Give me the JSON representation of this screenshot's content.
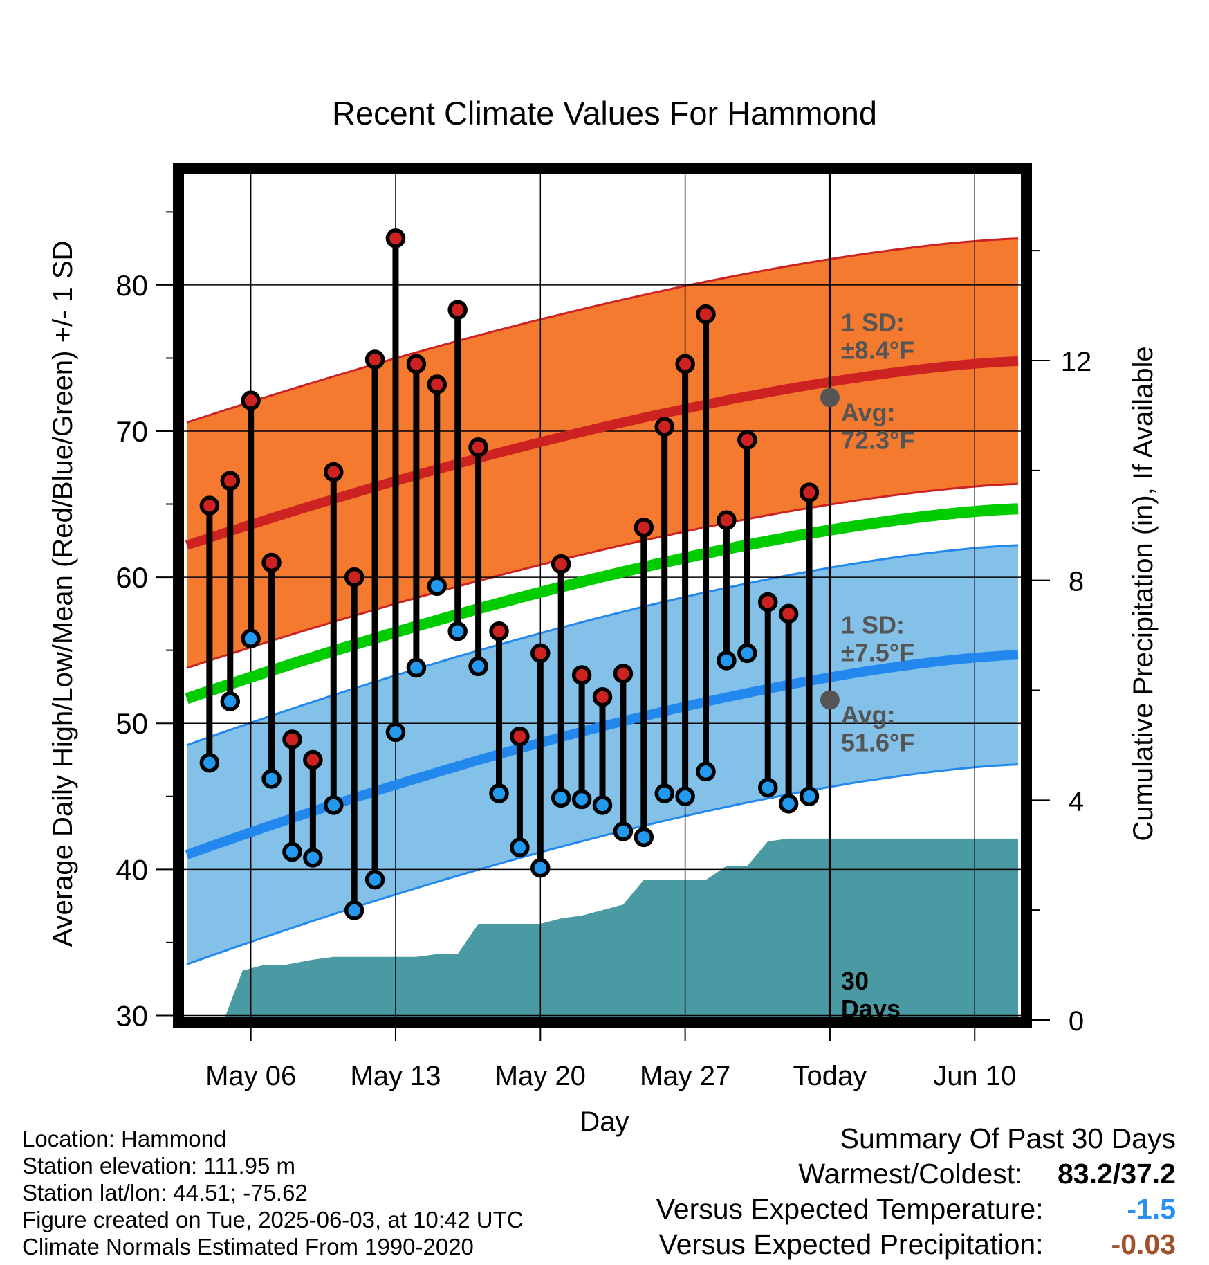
{
  "chart_data": {
    "type": "scatter",
    "title": "Recent Climate Values For Hammond",
    "xlabel": "Day",
    "ylabel": "Average Daily High/Low/Mean (Red/Blue/Green) +/- 1 SD",
    "y2label": "Cumulative Precipitation (in), If Available",
    "ylim": [
      29.5,
      88
    ],
    "y_ticks": [
      30,
      40,
      50,
      60,
      70,
      80
    ],
    "y2lim": [
      -0.05,
      15.5
    ],
    "y2_ticks": [
      0,
      4,
      8,
      12
    ],
    "xlim": [
      -3.5,
      37.5
    ],
    "x_ticks": [
      {
        "day": 0,
        "label": "May 06"
      },
      {
        "day": 7,
        "label": "May 13"
      },
      {
        "day": 14,
        "label": "May 20"
      },
      {
        "day": 21,
        "label": "May 27"
      },
      {
        "day": 28,
        "label": "Today"
      },
      {
        "day": 35,
        "label": "Jun 10"
      }
    ],
    "grid": true,
    "days": [
      -2,
      -1,
      0,
      1,
      2,
      3,
      4,
      5,
      6,
      7,
      8,
      9,
      10,
      11,
      12,
      13,
      14,
      15,
      16,
      17,
      18,
      19,
      20,
      21,
      22,
      23,
      24,
      25,
      26,
      27
    ],
    "series": [
      {
        "name": "Daily High",
        "color": "#cc2222",
        "values": [
          64.9,
          66.6,
          72.1,
          61.0,
          48.9,
          47.5,
          67.2,
          60.0,
          74.9,
          83.2,
          74.6,
          73.2,
          78.3,
          68.9,
          56.3,
          49.1,
          54.8,
          60.9,
          53.3,
          51.8,
          53.4,
          63.4,
          70.3,
          74.6,
          78.0,
          63.9,
          69.4,
          58.3,
          57.5,
          65.8
        ]
      },
      {
        "name": "Daily Low",
        "color": "#2299ee",
        "values": [
          47.3,
          51.5,
          55.8,
          46.2,
          41.2,
          40.8,
          44.4,
          37.2,
          39.3,
          49.4,
          53.8,
          59.4,
          56.3,
          53.9,
          45.2,
          41.5,
          40.1,
          44.9,
          44.8,
          44.4,
          42.6,
          42.2,
          45.2,
          45.0,
          46.7,
          54.3,
          54.8,
          45.6,
          44.5,
          45.0
        ]
      }
    ],
    "normal_high": {
      "start": 62.0,
      "end": 74.8,
      "sd": 8.4,
      "today_avg": 72.3,
      "color": "#cc2222",
      "band_color": "#f47a30"
    },
    "normal_low": {
      "start": 40.8,
      "end": 54.7,
      "sd": 7.5,
      "today_avg": 51.6,
      "color": "#2288ee",
      "band_color": "#84c1e8"
    },
    "normal_mean": {
      "start": 51.5,
      "end": 64.7,
      "color": "#00cc00"
    },
    "precip_cumulative": [
      [
        -3.1,
        0.0
      ],
      [
        -1.3,
        0.0
      ],
      [
        -0.4,
        0.9
      ],
      [
        0.6,
        1.0
      ],
      [
        1.6,
        1.0
      ],
      [
        3.0,
        1.1
      ],
      [
        4.0,
        1.15
      ],
      [
        8.0,
        1.15
      ],
      [
        9.0,
        1.2
      ],
      [
        10.0,
        1.2
      ],
      [
        11.0,
        1.75
      ],
      [
        14.0,
        1.75
      ],
      [
        15.0,
        1.85
      ],
      [
        16.0,
        1.9
      ],
      [
        17.0,
        2.0
      ],
      [
        18.0,
        2.1
      ],
      [
        19.0,
        2.55
      ],
      [
        22.0,
        2.55
      ],
      [
        23.0,
        2.8
      ],
      [
        24.0,
        2.8
      ],
      [
        25.0,
        3.25
      ],
      [
        26.0,
        3.3
      ],
      [
        28.0,
        3.3
      ],
      [
        37.1,
        3.3
      ]
    ],
    "precip_color": "#4a9aa3",
    "annotations": {
      "high_sd": [
        "1 SD:",
        "±8.4°F"
      ],
      "high_avg": [
        "Avg:",
        "72.3°F"
      ],
      "low_sd": [
        "1 SD:",
        "±7.5°F"
      ],
      "low_avg": [
        "Avg:",
        "51.6°F"
      ],
      "days": [
        "30",
        "Days"
      ]
    }
  },
  "footer_left": [
    "Location: Hammond",
    "Station elevation: 111.95 m",
    "Station lat/lon: 44.51; -75.62",
    "Figure created on Tue, 2025-06-03, at 10:42 UTC",
    "Climate Normals Estimated From 1990-2020"
  ],
  "summary": {
    "title": "Summary Of Past 30 Days",
    "warm_cold_label": "Warmest/Coldest:",
    "warm_cold_value": "83.2/37.2",
    "temp_label": "Versus Expected Temperature:",
    "temp_value": "-1.5",
    "temp_color": "#2a8ff0",
    "precip_label": "Versus Expected Precipitation:",
    "precip_value": "-0.03",
    "precip_color": "#a0522d"
  }
}
